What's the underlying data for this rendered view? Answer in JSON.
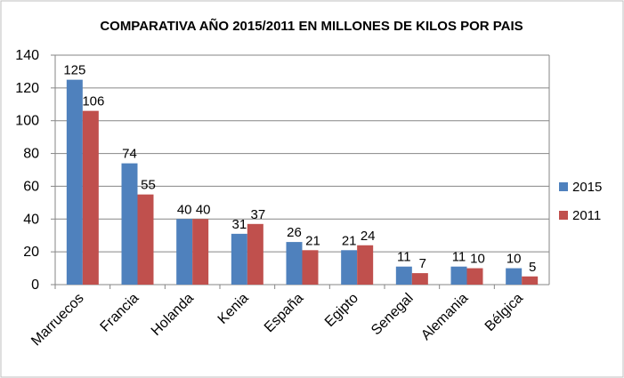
{
  "chart_data": {
    "type": "bar",
    "title": "COMPARATIVA AÑO 2015/2011 EN MILLONES DE KILOS POR PAIS",
    "categories": [
      "Marruecos",
      "Francia",
      "Holanda",
      "Kenia",
      "España",
      "Egipto",
      "Senegal",
      "Alemania",
      "Bélgica"
    ],
    "series": [
      {
        "name": "2015",
        "color": "#4F81BD",
        "values": [
          125,
          74,
          40,
          31,
          26,
          21,
          11,
          11,
          10
        ]
      },
      {
        "name": "2011",
        "color": "#C0504D",
        "values": [
          106,
          55,
          40,
          37,
          21,
          24,
          7,
          10,
          5
        ]
      }
    ],
    "ylim": [
      0,
      140
    ],
    "yticks": [
      0,
      20,
      40,
      60,
      80,
      100,
      120,
      140
    ],
    "grid": true,
    "legend_position": "right",
    "data_labels": true
  }
}
